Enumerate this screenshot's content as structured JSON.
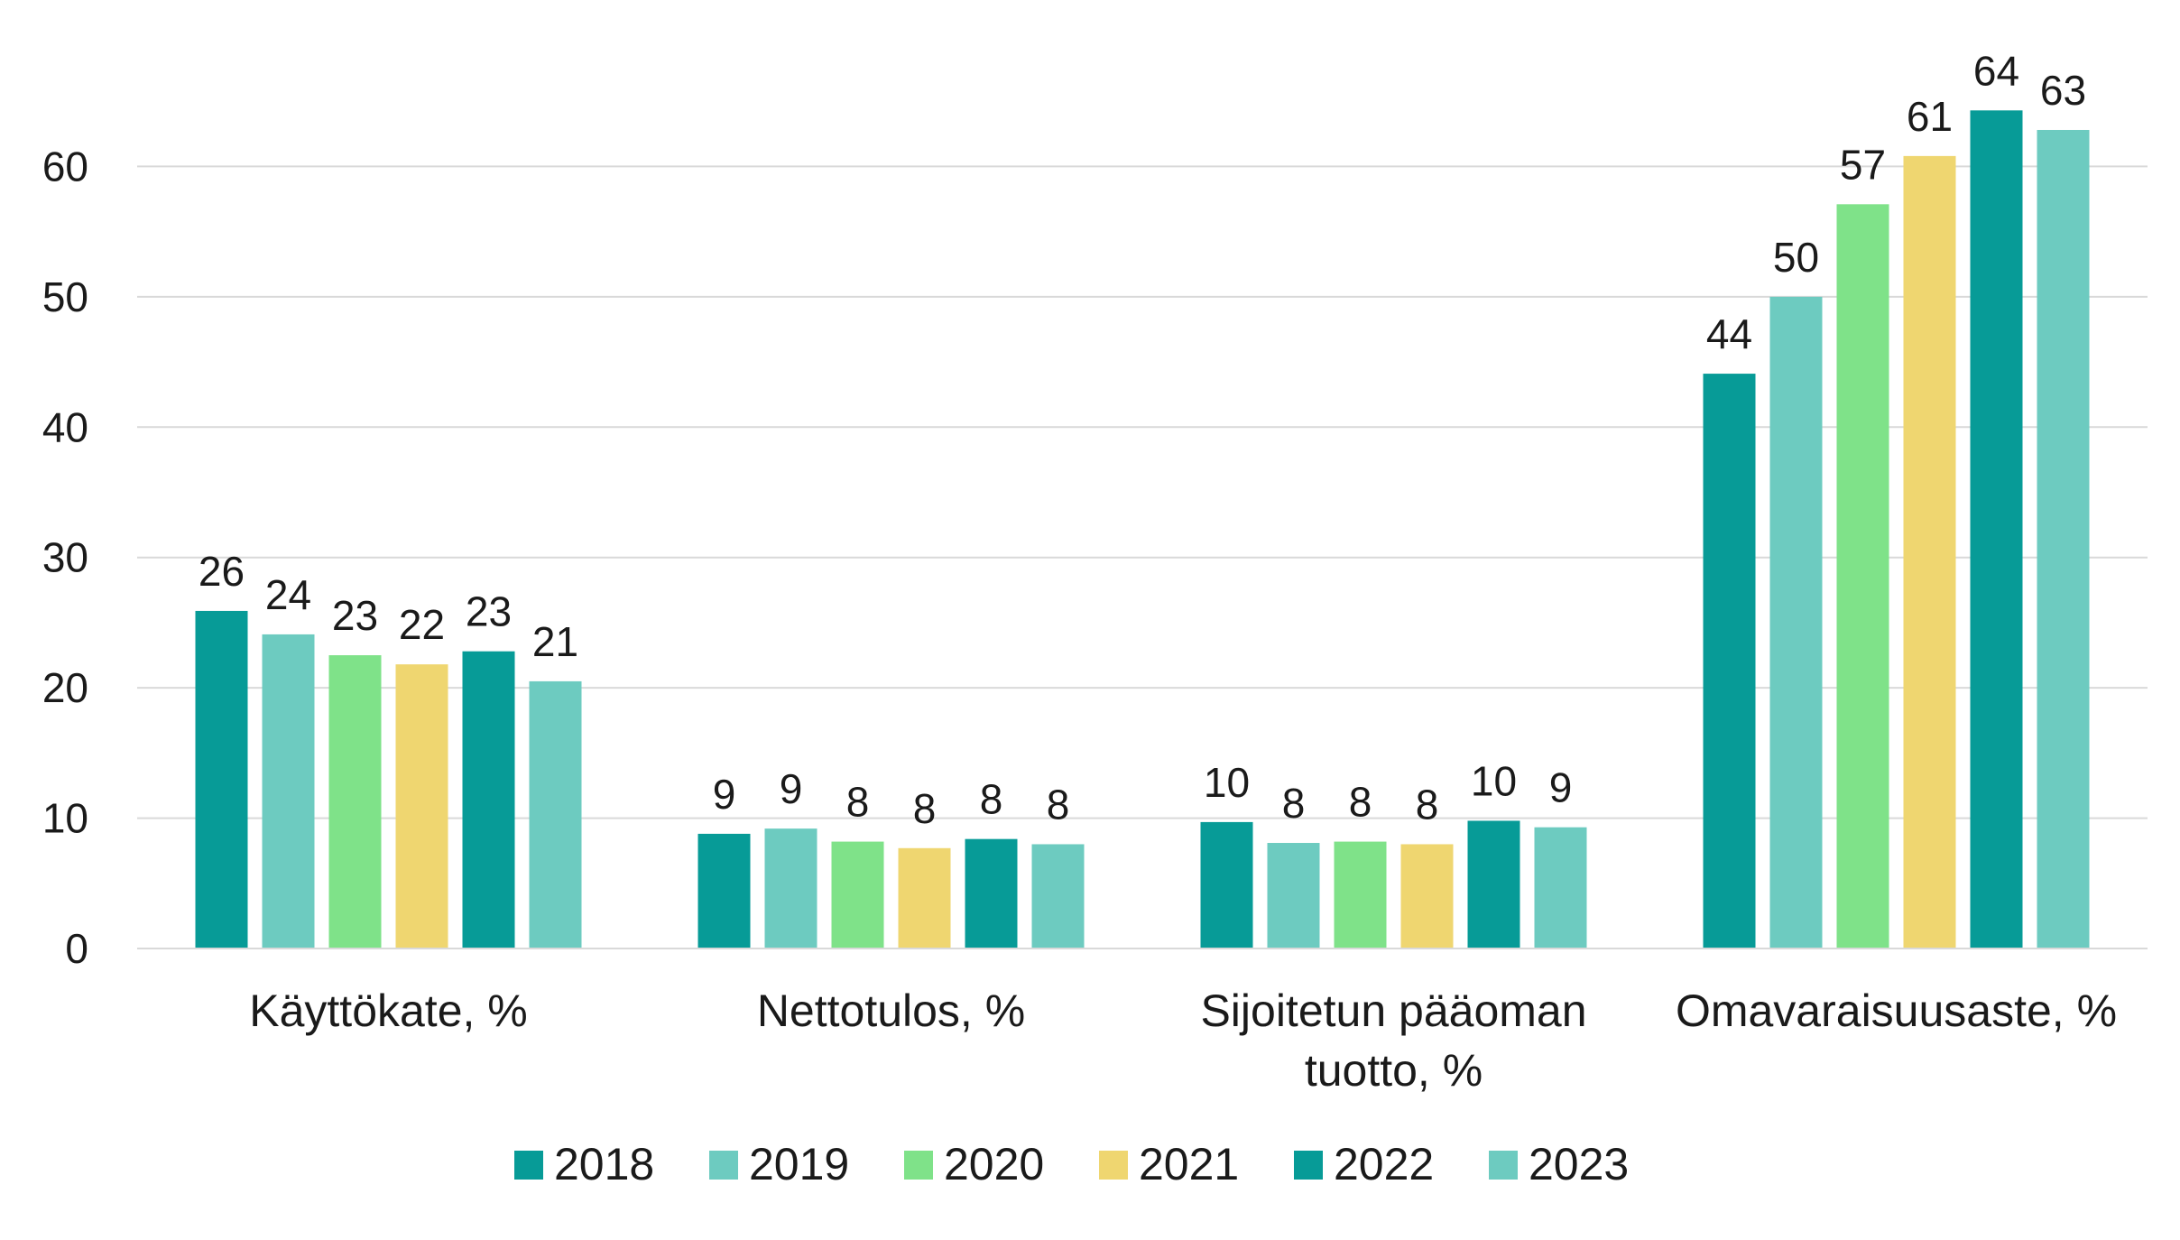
{
  "chart_data": {
    "type": "bar",
    "title": "",
    "xlabel": "",
    "ylabel": "",
    "ylim": [
      0,
      70
    ],
    "yticks": [
      0,
      10,
      20,
      30,
      40,
      50,
      60
    ],
    "grid": true,
    "legend_position": "bottom",
    "categories": [
      "Käyttökate, %",
      "Nettotulos, %",
      "Sijoitetun pääoman tuotto, %",
      "Omavaraisuusaste, %"
    ],
    "series": [
      {
        "name": "2018",
        "color": "#079b97",
        "values": [
          25.9,
          8.8,
          9.7,
          44.1
        ],
        "labels": [
          "26",
          "9",
          "10",
          "44"
        ]
      },
      {
        "name": "2019",
        "color": "#6dcbc0",
        "values": [
          24.1,
          9.2,
          8.1,
          50.0
        ],
        "labels": [
          "24",
          "9",
          "8",
          "50"
        ]
      },
      {
        "name": "2020",
        "color": "#7fe289",
        "values": [
          22.5,
          8.2,
          8.2,
          57.1
        ],
        "labels": [
          "23",
          "8",
          "8",
          "57"
        ]
      },
      {
        "name": "2021",
        "color": "#efd670",
        "values": [
          21.8,
          7.7,
          8.0,
          60.8
        ],
        "labels": [
          "22",
          "8",
          "8",
          "61"
        ]
      },
      {
        "name": "2022",
        "color": "#079b97",
        "values": [
          22.8,
          8.4,
          9.8,
          64.3
        ],
        "labels": [
          "23",
          "8",
          "10",
          "64"
        ]
      },
      {
        "name": "2023",
        "color": "#6dcbc0",
        "values": [
          20.5,
          8.0,
          9.3,
          62.8
        ],
        "labels": [
          "21",
          "8",
          "9",
          "63"
        ]
      }
    ]
  }
}
